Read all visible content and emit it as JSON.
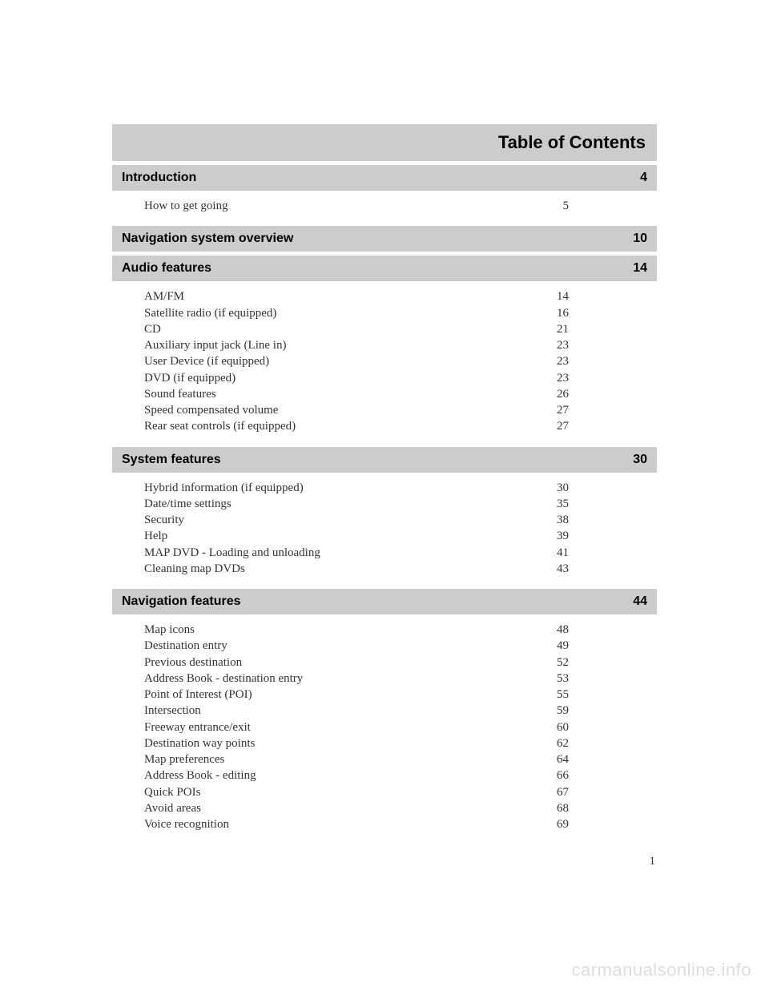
{
  "title": "Table of Contents",
  "page_number": "1",
  "watermark": "carmanualsonline.info",
  "colors": {
    "header_bg": "#cccccc",
    "text": "#333333",
    "heading_text": "#000000",
    "background": "#ffffff",
    "watermark": "#dddddd"
  },
  "fonts": {
    "heading_family": "Arial, Helvetica, sans-serif",
    "body_family": "Georgia, 'Times New Roman', serif",
    "title_size_pt": 17,
    "section_size_pt": 12,
    "body_size_pt": 11
  },
  "sections": [
    {
      "title": "Introduction",
      "page": "4",
      "items": [
        {
          "label": "How to get going",
          "page": "5"
        }
      ]
    },
    {
      "title": "Navigation system overview",
      "page": "10",
      "items": []
    },
    {
      "title": "Audio features",
      "page": "14",
      "items": [
        {
          "label": "AM/FM",
          "page": "14"
        },
        {
          "label": "Satellite radio (if equipped)",
          "page": "16"
        },
        {
          "label": "CD",
          "page": "21"
        },
        {
          "label": "Auxiliary input jack (Line in)",
          "page": "23"
        },
        {
          "label": "User Device (if equipped)",
          "page": "23"
        },
        {
          "label": "DVD (if equipped)",
          "page": "23"
        },
        {
          "label": "Sound features",
          "page": "26"
        },
        {
          "label": "Speed compensated volume",
          "page": "27"
        },
        {
          "label": "Rear seat controls (if equipped)",
          "page": "27"
        }
      ]
    },
    {
      "title": "System features",
      "page": "30",
      "items": [
        {
          "label": "Hybrid information (if equipped)",
          "page": "30"
        },
        {
          "label": "Date/time settings",
          "page": "35"
        },
        {
          "label": "Security",
          "page": "38"
        },
        {
          "label": "Help",
          "page": "39"
        },
        {
          "label": "MAP DVD - Loading and unloading",
          "page": "41"
        },
        {
          "label": "Cleaning map DVDs",
          "page": "43"
        }
      ]
    },
    {
      "title": "Navigation features",
      "page": "44",
      "items": [
        {
          "label": "Map icons",
          "page": "48"
        },
        {
          "label": "Destination entry",
          "page": "49"
        },
        {
          "label": "Previous destination",
          "page": "52"
        },
        {
          "label": "Address Book - destination entry",
          "page": "53"
        },
        {
          "label": "Point of Interest (POI)",
          "page": "55"
        },
        {
          "label": "Intersection",
          "page": "59"
        },
        {
          "label": "Freeway entrance/exit",
          "page": "60"
        },
        {
          "label": "Destination way points",
          "page": "62"
        },
        {
          "label": "Map preferences",
          "page": "64"
        },
        {
          "label": "Address Book - editing",
          "page": "66"
        },
        {
          "label": "Quick POIs",
          "page": "67"
        },
        {
          "label": "Avoid areas",
          "page": "68"
        },
        {
          "label": "Voice recognition",
          "page": "69"
        }
      ]
    }
  ]
}
